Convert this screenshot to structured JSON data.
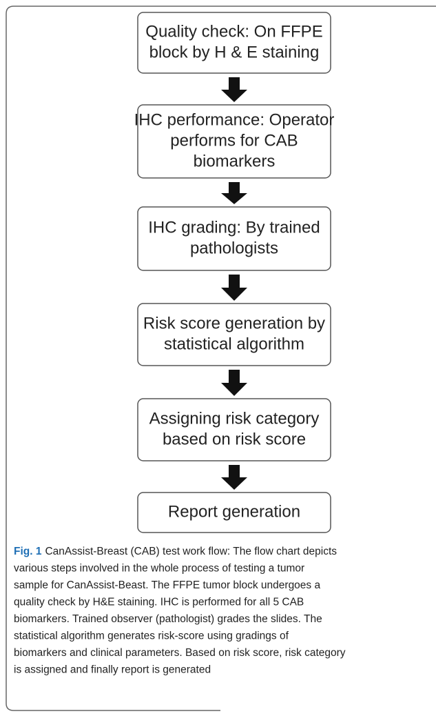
{
  "steps": [
    {
      "lines": [
        "Quality check:  On FFPE",
        "block by H & E staining"
      ]
    },
    {
      "lines": [
        "IHC performance: Operator",
        "performs for CAB",
        "biomarkers"
      ]
    },
    {
      "lines": [
        "IHC grading: By trained",
        "pathologists"
      ]
    },
    {
      "lines": [
        "Risk score generation by",
        "statistical algorithm"
      ]
    },
    {
      "lines": [
        "Assigning risk category",
        "based on risk score"
      ]
    },
    {
      "lines": [
        "Report generation"
      ]
    }
  ],
  "caption": {
    "label": "Fig. 1",
    "lines": [
      "CanAssist-Breast (CAB) test work flow: The flow chart depicts",
      "various steps involved in the whole process of testing a tumor",
      "sample for CanAssist-Beast. The FFPE tumor block undergoes a",
      "quality check by H&E staining. IHC is performed for all 5 CAB",
      "biomarkers. Trained observer (pathologist) grades the slides. The",
      "statistical algorithm generates risk-score using gradings of",
      "biomarkers and clinical parameters. Based on risk score, risk category",
      "is assigned and finally report is generated"
    ]
  }
}
